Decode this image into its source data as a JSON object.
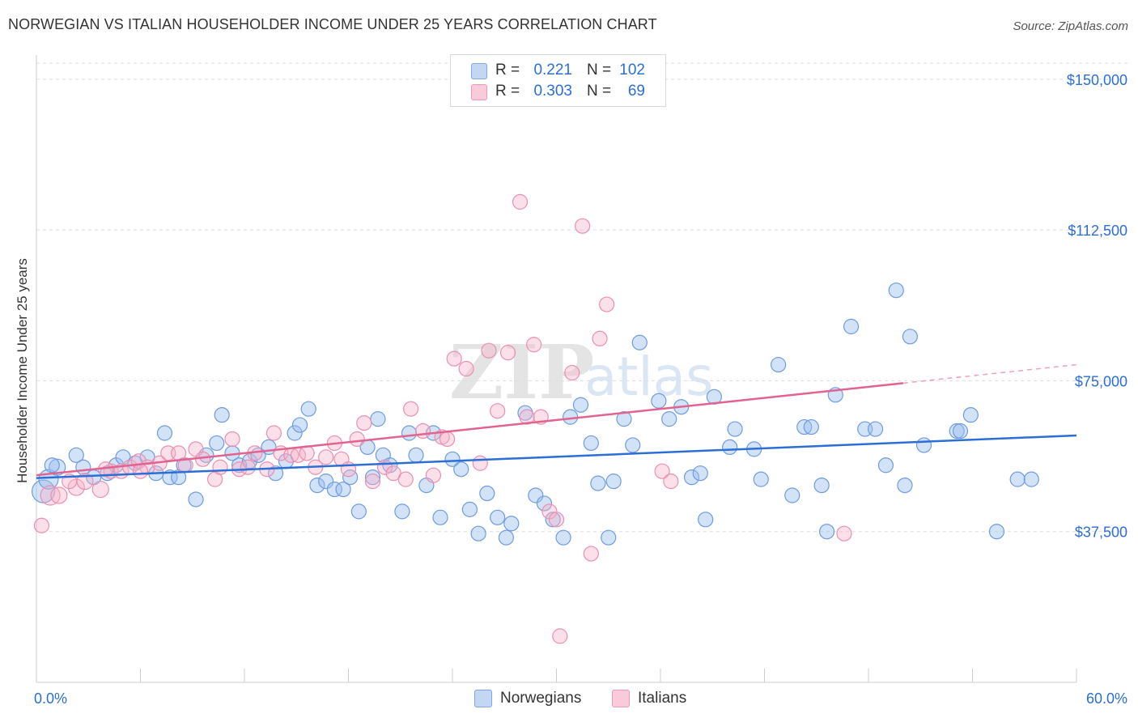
{
  "header": {
    "title": "NORWEGIAN VS ITALIAN HOUSEHOLDER INCOME UNDER 25 YEARS CORRELATION CHART",
    "source": "Source: ZipAtlas.com"
  },
  "watermark": {
    "zip": "ZIP",
    "atlas": "atlas"
  },
  "legend": {
    "rows": [
      {
        "swatch": "#b8d0f2",
        "r_label": "R =",
        "r_value": "0.221",
        "n_label": "N =",
        "n_value": "102"
      },
      {
        "swatch": "#f7bfd0",
        "r_label": "R =",
        "r_value": "0.303",
        "n_label": "N =",
        "n_value": "69"
      }
    ]
  },
  "bottom_legend": [
    {
      "label": "Norwegians",
      "swatch": "#b8d0f2"
    },
    {
      "label": "Italians",
      "swatch": "#f7bfd0"
    }
  ],
  "chart_data": {
    "type": "scatter",
    "title": "NORWEGIAN VS ITALIAN HOUSEHOLDER INCOME UNDER 25 YEARS CORRELATION CHART",
    "xlabel": "",
    "ylabel": "Householder Income Under 25 years",
    "xlim": [
      0,
      60
    ],
    "ylim": [
      0,
      154000
    ],
    "x_tick_labels": [
      "0.0%",
      "60.0%"
    ],
    "y_ticks": [
      37500,
      75000,
      112500,
      150000
    ],
    "y_tick_labels": [
      "$37,500",
      "$75,000",
      "$112,500",
      "$150,000"
    ],
    "grid": "horizontal dashed",
    "legend_position": "top-center",
    "colors": {
      "Norwegians": "#5b8ede",
      "Italians": "#ef8ab0",
      "norwegian_line": "#2b6fd6",
      "italian_line": "#e2638f",
      "tick_label": "#2b6fd6"
    },
    "series": [
      {
        "name": "Norwegians",
        "r": 0.221,
        "n": 102,
        "trend": {
          "x": [
            0,
            60
          ],
          "y": [
            50800,
            61400
          ],
          "dashed_from": null
        },
        "points": [
          [
            0.4,
            47500,
            14
          ],
          [
            0.7,
            50500,
            12
          ],
          [
            1.2,
            53500,
            10
          ],
          [
            2.3,
            56500,
            9
          ],
          [
            2.7,
            53500,
            9
          ],
          [
            3.3,
            51000,
            9
          ],
          [
            4.1,
            52000,
            9
          ],
          [
            4.6,
            54000,
            9
          ],
          [
            5.0,
            56000,
            9
          ],
          [
            5.7,
            54500,
            9
          ],
          [
            6.4,
            56000,
            9
          ],
          [
            6.9,
            52000,
            9
          ],
          [
            7.4,
            62000,
            9
          ],
          [
            7.7,
            51000,
            9
          ],
          [
            8.2,
            51000,
            9
          ],
          [
            8.5,
            54000,
            9
          ],
          [
            9.2,
            45500,
            9
          ],
          [
            9.8,
            56500,
            9
          ],
          [
            10.4,
            59500,
            9
          ],
          [
            10.7,
            66500,
            9
          ],
          [
            11.3,
            57000,
            9
          ],
          [
            11.7,
            54000,
            9
          ],
          [
            12.3,
            55000,
            9
          ],
          [
            12.8,
            56500,
            9
          ],
          [
            13.4,
            58500,
            9
          ],
          [
            13.8,
            52000,
            9
          ],
          [
            14.4,
            55000,
            9
          ],
          [
            14.9,
            62000,
            9
          ],
          [
            15.2,
            64000,
            9
          ],
          [
            15.7,
            68000,
            9
          ],
          [
            16.2,
            49000,
            9
          ],
          [
            16.7,
            50000,
            9
          ],
          [
            17.2,
            48000,
            9
          ],
          [
            17.7,
            48000,
            9
          ],
          [
            18.1,
            51000,
            9
          ],
          [
            18.6,
            42500,
            9
          ],
          [
            19.1,
            58500,
            9
          ],
          [
            19.4,
            51000,
            9
          ],
          [
            19.7,
            65500,
            9
          ],
          [
            20.0,
            56500,
            9
          ],
          [
            20.4,
            54000,
            9
          ],
          [
            21.1,
            42500,
            9
          ],
          [
            21.5,
            62000,
            9
          ],
          [
            21.9,
            56500,
            9
          ],
          [
            22.5,
            49000,
            9
          ],
          [
            22.9,
            62000,
            9
          ],
          [
            23.3,
            41000,
            9
          ],
          [
            24.0,
            55500,
            9
          ],
          [
            24.5,
            53000,
            9
          ],
          [
            25.0,
            43000,
            9
          ],
          [
            25.5,
            37000,
            9
          ],
          [
            26.0,
            47000,
            9
          ],
          [
            26.6,
            41000,
            9
          ],
          [
            27.1,
            36000,
            9
          ],
          [
            27.4,
            39500,
            9
          ],
          [
            28.2,
            67000,
            9
          ],
          [
            28.8,
            46500,
            9
          ],
          [
            29.3,
            44500,
            9
          ],
          [
            29.8,
            40500,
            9
          ],
          [
            30.4,
            36000,
            9
          ],
          [
            30.8,
            66000,
            9
          ],
          [
            31.4,
            69000,
            9
          ],
          [
            32.0,
            59500,
            9
          ],
          [
            32.4,
            49500,
            9
          ],
          [
            33.0,
            36000,
            9
          ],
          [
            33.3,
            50000,
            9
          ],
          [
            33.9,
            65500,
            9
          ],
          [
            34.4,
            59000,
            9
          ],
          [
            34.8,
            84500,
            9
          ],
          [
            35.9,
            70000,
            9
          ],
          [
            36.5,
            65500,
            9
          ],
          [
            37.2,
            68500,
            9
          ],
          [
            37.8,
            51000,
            9
          ],
          [
            38.3,
            52000,
            9
          ],
          [
            38.6,
            40500,
            9
          ],
          [
            39.1,
            71000,
            9
          ],
          [
            40.0,
            58500,
            9
          ],
          [
            40.3,
            63000,
            9
          ],
          [
            41.4,
            58000,
            9
          ],
          [
            41.8,
            50500,
            9
          ],
          [
            42.8,
            79000,
            9
          ],
          [
            43.6,
            46500,
            9
          ],
          [
            44.3,
            63500,
            9
          ],
          [
            44.7,
            63500,
            9
          ],
          [
            45.3,
            49000,
            9
          ],
          [
            45.6,
            37500,
            9
          ],
          [
            46.1,
            71500,
            9
          ],
          [
            47.0,
            88500,
            9
          ],
          [
            47.8,
            63000,
            9
          ],
          [
            48.4,
            63000,
            9
          ],
          [
            49.0,
            54000,
            9
          ],
          [
            49.6,
            97500,
            9
          ],
          [
            50.1,
            49000,
            9
          ],
          [
            50.4,
            86000,
            9
          ],
          [
            51.2,
            59000,
            9
          ],
          [
            53.1,
            62500,
            9
          ],
          [
            53.3,
            62500,
            9
          ],
          [
            53.9,
            66500,
            9
          ],
          [
            55.4,
            37500,
            9
          ],
          [
            56.6,
            50500,
            9
          ],
          [
            57.4,
            50500,
            9
          ],
          [
            0.9,
            54000,
            9
          ]
        ]
      },
      {
        "name": "Italians",
        "r": 0.303,
        "n": 69,
        "trend": {
          "x": [
            0,
            60
          ],
          "y": [
            51500,
            79000
          ],
          "dashed_from": 50
        },
        "points": [
          [
            0.3,
            39000,
            9
          ],
          [
            0.8,
            46500,
            12
          ],
          [
            1.3,
            46500,
            10
          ],
          [
            2.3,
            48500,
            10
          ],
          [
            2.8,
            50000,
            10
          ],
          [
            3.7,
            48000,
            10
          ],
          [
            4.3,
            52500,
            9
          ],
          [
            4.9,
            52500,
            9
          ],
          [
            5.4,
            53500,
            9
          ],
          [
            5.9,
            55000,
            9
          ],
          [
            6.4,
            53500,
            9
          ],
          [
            7.1,
            54500,
            9
          ],
          [
            7.6,
            57000,
            9
          ],
          [
            8.2,
            57000,
            9
          ],
          [
            8.6,
            54000,
            9
          ],
          [
            9.2,
            58000,
            9
          ],
          [
            9.6,
            55500,
            9
          ],
          [
            10.3,
            50500,
            9
          ],
          [
            10.6,
            53500,
            9
          ],
          [
            11.3,
            60500,
            9
          ],
          [
            11.7,
            53000,
            9
          ],
          [
            12.2,
            53500,
            9
          ],
          [
            12.6,
            57000,
            9
          ],
          [
            13.3,
            53000,
            9
          ],
          [
            13.7,
            62000,
            9
          ],
          [
            14.1,
            57000,
            9
          ],
          [
            14.7,
            56500,
            9
          ],
          [
            15.1,
            56500,
            9
          ],
          [
            15.6,
            57000,
            9
          ],
          [
            16.1,
            53500,
            9
          ],
          [
            16.7,
            56000,
            9
          ],
          [
            17.2,
            59500,
            9
          ],
          [
            17.6,
            55500,
            9
          ],
          [
            18.0,
            53000,
            9
          ],
          [
            18.5,
            60500,
            9
          ],
          [
            18.9,
            64500,
            9
          ],
          [
            19.4,
            50000,
            9
          ],
          [
            20.1,
            53500,
            9
          ],
          [
            20.6,
            52000,
            9
          ],
          [
            21.3,
            50500,
            9
          ],
          [
            21.6,
            68000,
            9
          ],
          [
            22.3,
            62500,
            9
          ],
          [
            22.9,
            51500,
            9
          ],
          [
            23.4,
            61000,
            9
          ],
          [
            23.7,
            60500,
            9
          ],
          [
            24.1,
            80500,
            9
          ],
          [
            24.8,
            78000,
            9
          ],
          [
            25.6,
            54500,
            9
          ],
          [
            26.1,
            82500,
            9
          ],
          [
            26.6,
            67500,
            9
          ],
          [
            27.2,
            82000,
            9
          ],
          [
            27.9,
            119500,
            9
          ],
          [
            28.3,
            66000,
            9
          ],
          [
            28.7,
            84000,
            9
          ],
          [
            29.1,
            66000,
            9
          ],
          [
            29.6,
            42500,
            9
          ],
          [
            30.0,
            40500,
            9
          ],
          [
            30.9,
            77000,
            9
          ],
          [
            31.5,
            113500,
            9
          ],
          [
            32.0,
            32000,
            9
          ],
          [
            32.5,
            85500,
            9
          ],
          [
            32.9,
            94000,
            9
          ],
          [
            36.1,
            52500,
            9
          ],
          [
            36.6,
            50000,
            9
          ],
          [
            46.6,
            37000,
            9
          ],
          [
            30.2,
            11500,
            9
          ],
          [
            1.9,
            50000,
            9
          ],
          [
            4.0,
            53000,
            9
          ],
          [
            6.0,
            52500,
            9
          ]
        ]
      }
    ]
  }
}
